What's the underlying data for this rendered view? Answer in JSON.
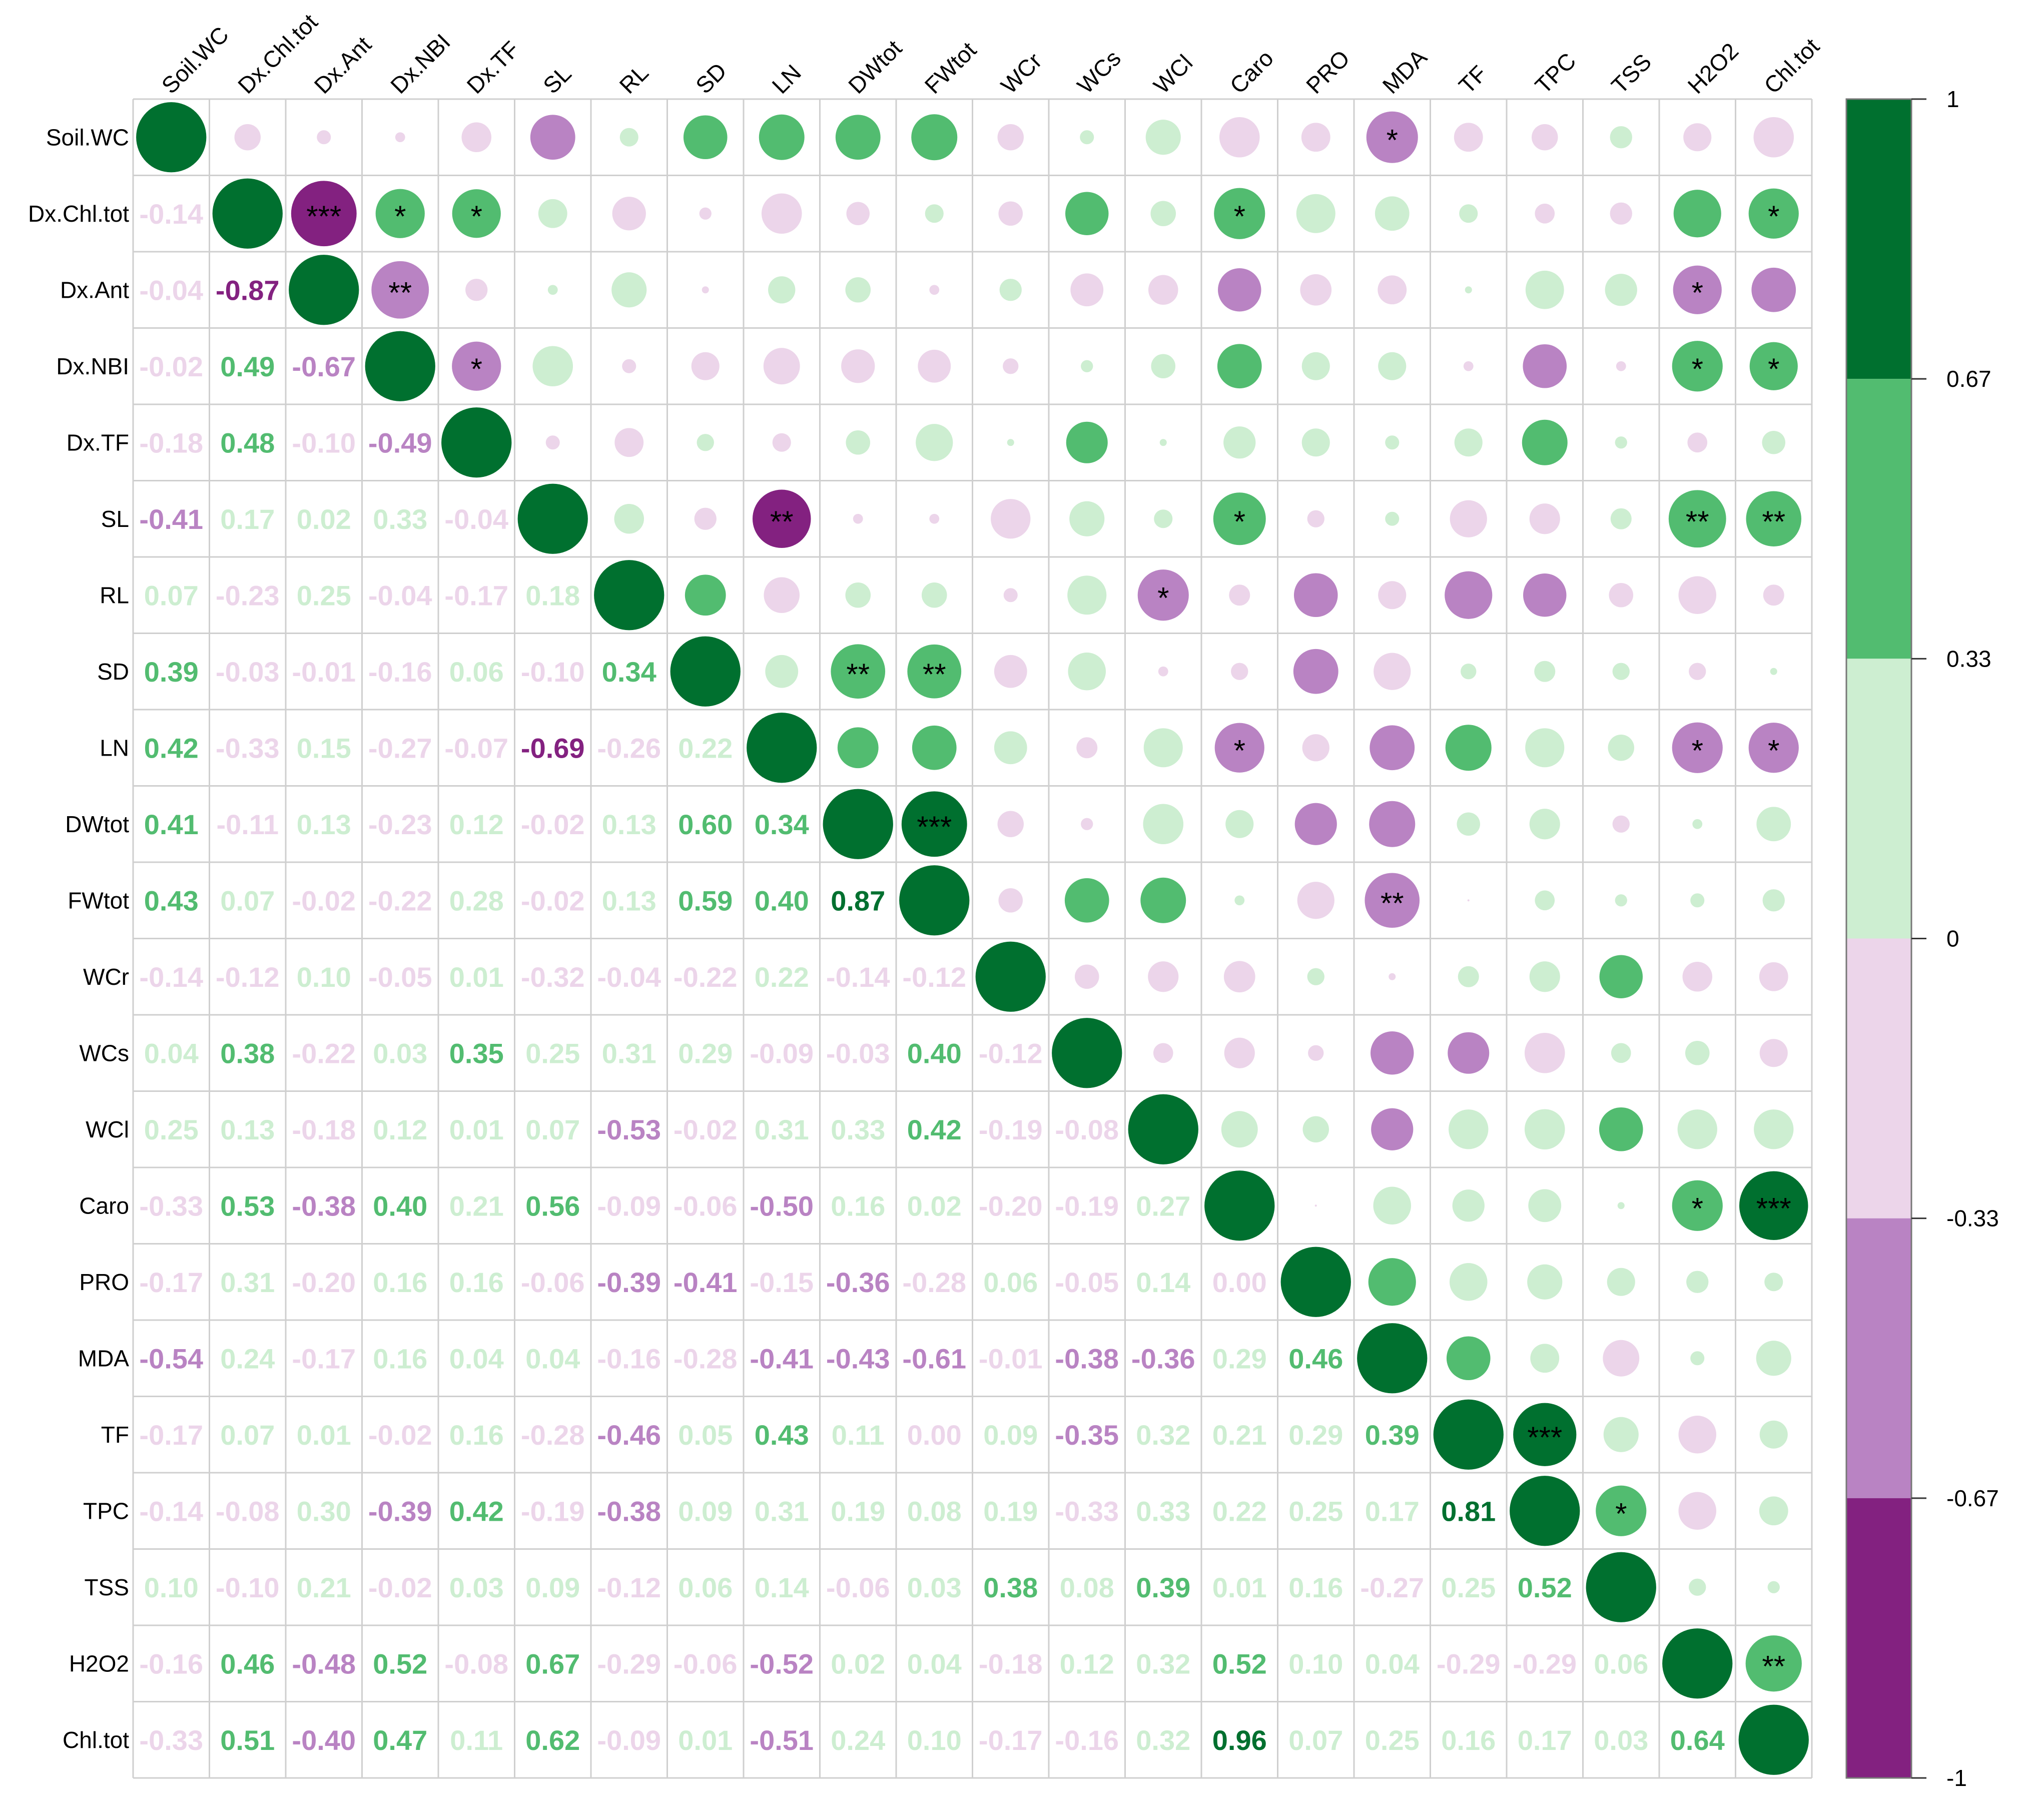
{
  "chart_data": {
    "type": "heatmap",
    "subtype": "correlation-matrix (upper: circles + significance stars, lower: coefficient numbers)",
    "title": "",
    "variables": [
      "Soil.WC",
      "Dx.Chl.tot",
      "Dx.Ant",
      "Dx.NBI",
      "Dx.TF",
      "SL",
      "RL",
      "SD",
      "LN",
      "DWtot",
      "FWtot",
      "WCr",
      "WCs",
      "WCl",
      "Caro",
      "PRO",
      "MDA",
      "TF",
      "TPC",
      "TSS",
      "H2O2",
      "Chl.tot"
    ],
    "lower_labels": [
      [
        "",
        "",
        "",
        "",
        "",
        "",
        "",
        "",
        "",
        "",
        "",
        "",
        "",
        "",
        "",
        "",
        "",
        "",
        "",
        "",
        "",
        ""
      ],
      [
        "-0.14",
        "",
        "",
        "",
        "",
        "",
        "",
        "",
        "",
        "",
        "",
        "",
        "",
        "",
        "",
        "",
        "",
        "",
        "",
        "",
        "",
        ""
      ],
      [
        "-0.04",
        "-0.87",
        "",
        "",
        "",
        "",
        "",
        "",
        "",
        "",
        "",
        "",
        "",
        "",
        "",
        "",
        "",
        "",
        "",
        "",
        "",
        ""
      ],
      [
        "-0.02",
        "0.49",
        "-0.67",
        "",
        "",
        "",
        "",
        "",
        "",
        "",
        "",
        "",
        "",
        "",
        "",
        "",
        "",
        "",
        "",
        "",
        "",
        ""
      ],
      [
        "-0.18",
        "0.48",
        "-0.10",
        "-0.49",
        "",
        "",
        "",
        "",
        "",
        "",
        "",
        "",
        "",
        "",
        "",
        "",
        "",
        "",
        "",
        "",
        "",
        ""
      ],
      [
        "-0.41",
        "0.17",
        "0.02",
        "0.33",
        "-0.04",
        "",
        "",
        "",
        "",
        "",
        "",
        "",
        "",
        "",
        "",
        "",
        "",
        "",
        "",
        "",
        "",
        ""
      ],
      [
        "0.07",
        "-0.23",
        "0.25",
        "-0.04",
        "-0.17",
        "0.18",
        "",
        "",
        "",
        "",
        "",
        "",
        "",
        "",
        "",
        "",
        "",
        "",
        "",
        "",
        "",
        ""
      ],
      [
        "0.39",
        "-0.03",
        "-0.01",
        "-0.16",
        "0.06",
        "-0.10",
        "0.34",
        "",
        "",
        "",
        "",
        "",
        "",
        "",
        "",
        "",
        "",
        "",
        "",
        "",
        "",
        ""
      ],
      [
        "0.42",
        "-0.33",
        "0.15",
        "-0.27",
        "-0.07",
        "-0.69",
        "-0.26",
        "0.22",
        "",
        "",
        "",
        "",
        "",
        "",
        "",
        "",
        "",
        "",
        "",
        "",
        "",
        ""
      ],
      [
        "0.41",
        "-0.11",
        "0.13",
        "-0.23",
        "0.12",
        "-0.02",
        "0.13",
        "0.60",
        "0.34",
        "",
        "",
        "",
        "",
        "",
        "",
        "",
        "",
        "",
        "",
        "",
        "",
        ""
      ],
      [
        "0.43",
        "0.07",
        "-0.02",
        "-0.22",
        "0.28",
        "-0.02",
        "0.13",
        "0.59",
        "0.40",
        "0.87",
        "",
        "",
        "",
        "",
        "",
        "",
        "",
        "",
        "",
        "",
        "",
        ""
      ],
      [
        "-0.14",
        "-0.12",
        "0.10",
        "-0.05",
        "0.01",
        "-0.32",
        "-0.04",
        "-0.22",
        "0.22",
        "-0.14",
        "-0.12",
        "",
        "",
        "",
        "",
        "",
        "",
        "",
        "",
        "",
        "",
        ""
      ],
      [
        "0.04",
        "0.38",
        "-0.22",
        "0.03",
        "0.35",
        "0.25",
        "0.31",
        "0.29",
        "-0.09",
        "-0.03",
        "0.40",
        "-0.12",
        "",
        "",
        "",
        "",
        "",
        "",
        "",
        "",
        "",
        ""
      ],
      [
        "0.25",
        "0.13",
        "-0.18",
        "0.12",
        "0.01",
        "0.07",
        "-0.53",
        "-0.02",
        "0.31",
        "0.33",
        "0.42",
        "-0.19",
        "-0.08",
        "",
        "",
        "",
        "",
        "",
        "",
        "",
        "",
        ""
      ],
      [
        "-0.33",
        "0.53",
        "-0.38",
        "0.40",
        "0.21",
        "0.56",
        "-0.09",
        "-0.06",
        "-0.50",
        "0.16",
        "0.02",
        "-0.20",
        "-0.19",
        "0.27",
        "",
        "",
        "",
        "",
        "",
        "",
        "",
        ""
      ],
      [
        "-0.17",
        "0.31",
        "-0.20",
        "0.16",
        "0.16",
        "-0.06",
        "-0.39",
        "-0.41",
        "-0.15",
        "-0.36",
        "-0.28",
        "0.06",
        "-0.05",
        "0.14",
        "0.00",
        "",
        "",
        "",
        "",
        "",
        "",
        ""
      ],
      [
        "-0.54",
        "0.24",
        "-0.17",
        "0.16",
        "0.04",
        "0.04",
        "-0.16",
        "-0.28",
        "-0.41",
        "-0.43",
        "-0.61",
        "-0.01",
        "-0.38",
        "-0.36",
        "0.29",
        "0.46",
        "",
        "",
        "",
        "",
        "",
        ""
      ],
      [
        "-0.17",
        "0.07",
        "0.01",
        "-0.02",
        "0.16",
        "-0.28",
        "-0.46",
        "0.05",
        "0.43",
        "0.11",
        "0.00",
        "0.09",
        "-0.35",
        "0.32",
        "0.21",
        "0.29",
        "0.39",
        "",
        "",
        "",
        "",
        ""
      ],
      [
        "-0.14",
        "-0.08",
        "0.30",
        "-0.39",
        "0.42",
        "-0.19",
        "-0.38",
        "0.09",
        "0.31",
        "0.19",
        "0.08",
        "0.19",
        "-0.33",
        "0.33",
        "0.22",
        "0.25",
        "0.17",
        "0.81",
        "",
        "",
        "",
        ""
      ],
      [
        "0.10",
        "-0.10",
        "0.21",
        "-0.02",
        "0.03",
        "0.09",
        "-0.12",
        "0.06",
        "0.14",
        "-0.06",
        "0.03",
        "0.38",
        "0.08",
        "0.39",
        "0.01",
        "0.16",
        "-0.27",
        "0.25",
        "0.52",
        "",
        "",
        ""
      ],
      [
        "-0.16",
        "0.46",
        "-0.48",
        "0.52",
        "-0.08",
        "0.67",
        "-0.29",
        "-0.06",
        "-0.52",
        "0.02",
        "0.04",
        "-0.18",
        "0.12",
        "0.32",
        "0.52",
        "0.10",
        "0.04",
        "-0.29",
        "-0.29",
        "0.06",
        "",
        ""
      ],
      [
        "-0.33",
        "0.51",
        "-0.40",
        "0.47",
        "0.11",
        "0.62",
        "-0.09",
        "0.01",
        "-0.51",
        "0.24",
        "0.10",
        "-0.17",
        "-0.16",
        "0.32",
        "0.96",
        "0.07",
        "0.25",
        "0.16",
        "0.17",
        "0.03",
        "0.64",
        ""
      ]
    ],
    "significance": [
      {
        "row": 0,
        "col": 16,
        "stars": "*"
      },
      {
        "row": 1,
        "col": 2,
        "stars": "***"
      },
      {
        "row": 1,
        "col": 3,
        "stars": "*"
      },
      {
        "row": 1,
        "col": 4,
        "stars": "*"
      },
      {
        "row": 1,
        "col": 14,
        "stars": "*"
      },
      {
        "row": 1,
        "col": 21,
        "stars": "*"
      },
      {
        "row": 2,
        "col": 3,
        "stars": "**"
      },
      {
        "row": 2,
        "col": 20,
        "stars": "*"
      },
      {
        "row": 3,
        "col": 4,
        "stars": "*"
      },
      {
        "row": 3,
        "col": 20,
        "stars": "*"
      },
      {
        "row": 3,
        "col": 21,
        "stars": "*"
      },
      {
        "row": 5,
        "col": 8,
        "stars": "**"
      },
      {
        "row": 5,
        "col": 14,
        "stars": "*"
      },
      {
        "row": 5,
        "col": 20,
        "stars": "**"
      },
      {
        "row": 5,
        "col": 21,
        "stars": "**"
      },
      {
        "row": 6,
        "col": 13,
        "stars": "*"
      },
      {
        "row": 7,
        "col": 9,
        "stars": "**"
      },
      {
        "row": 7,
        "col": 10,
        "stars": "**"
      },
      {
        "row": 8,
        "col": 14,
        "stars": "*"
      },
      {
        "row": 8,
        "col": 20,
        "stars": "*"
      },
      {
        "row": 8,
        "col": 21,
        "stars": "*"
      },
      {
        "row": 9,
        "col": 10,
        "stars": "***"
      },
      {
        "row": 10,
        "col": 16,
        "stars": "**"
      },
      {
        "row": 14,
        "col": 20,
        "stars": "*"
      },
      {
        "row": 14,
        "col": 21,
        "stars": "***"
      },
      {
        "row": 17,
        "col": 18,
        "stars": "***"
      },
      {
        "row": 18,
        "col": 19,
        "stars": "*"
      },
      {
        "row": 20,
        "col": 21,
        "stars": "**"
      }
    ],
    "color_scale": {
      "bins": [
        {
          "from": 0.67,
          "to": 1,
          "color": "#00702f"
        },
        {
          "from": 0.33,
          "to": 0.67,
          "color": "#52bc70"
        },
        {
          "from": 0,
          "to": 0.33,
          "color": "#cdeed1"
        },
        {
          "from": -0.33,
          "to": 0,
          "color": "#ecd5ea"
        },
        {
          "from": -0.67,
          "to": -0.33,
          "color": "#b983c3"
        },
        {
          "from": -1,
          "to": -0.67,
          "color": "#832180"
        }
      ],
      "tick_labels": [
        "1",
        "0.67",
        "0.33",
        "0",
        "-0.33",
        "-0.67",
        "-1"
      ]
    }
  }
}
